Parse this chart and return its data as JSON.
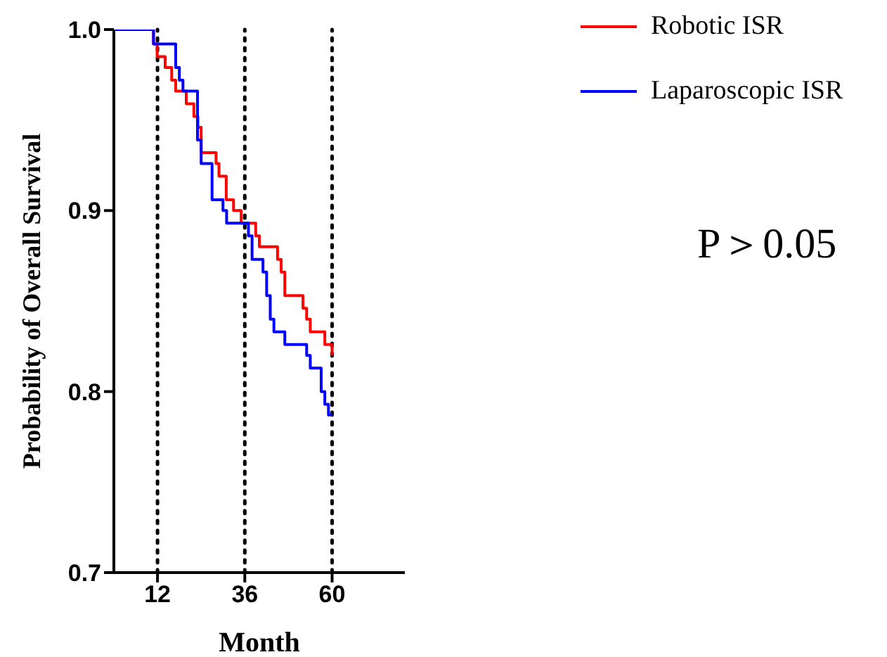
{
  "chart_data": {
    "type": "step",
    "xlabel": "Month",
    "ylabel": "Probability of Overall Survival",
    "xlim": [
      0,
      80
    ],
    "ylim": [
      0.7,
      1
    ],
    "xticks": [
      12,
      36,
      60
    ],
    "yticks": [
      {
        "value": 0.7,
        "label": "0.7"
      },
      {
        "value": 0.8,
        "label": "0.8"
      },
      {
        "value": 0.9,
        "label": "0.9"
      },
      {
        "value": 1,
        "label": "1.0"
      }
    ],
    "legend": "top right",
    "marker": "none",
    "line_style": "solid",
    "series": [
      {
        "name": "Robotic ISR",
        "color": "#ff0000",
        "x": [
          0,
          10.9,
          11.9,
          14.1,
          15.9,
          17,
          19.9,
          22,
          23.1,
          24,
          28.1,
          28.9,
          30.9,
          32.9,
          35,
          39,
          40,
          45,
          46,
          47,
          52,
          53,
          54,
          58,
          60
        ],
        "values": [
          1,
          0.992,
          0.985,
          0.979,
          0.972,
          0.966,
          0.959,
          0.952,
          0.946,
          0.932,
          0.926,
          0.919,
          0.906,
          0.9,
          0.893,
          0.886,
          0.88,
          0.873,
          0.866,
          0.853,
          0.846,
          0.84,
          0.833,
          0.826,
          0.82
        ]
      },
      {
        "name": "Laparoscopic ISR",
        "color": "#0000ff",
        "x": [
          0,
          10.9,
          17,
          18,
          19,
          23,
          24,
          27,
          30,
          31,
          37,
          38,
          41,
          42,
          43,
          44,
          47,
          53,
          54,
          57,
          58,
          59,
          60
        ],
        "values": [
          1,
          0.992,
          0.979,
          0.972,
          0.966,
          0.939,
          0.926,
          0.906,
          0.9,
          0.893,
          0.886,
          0.873,
          0.866,
          0.853,
          0.84,
          0.833,
          0.826,
          0.82,
          0.813,
          0.8,
          0.793,
          0.787,
          0.787
        ]
      }
    ],
    "ref_lines": [
      {
        "axis": "x",
        "value": 12,
        "color": "#000000",
        "line_style": "dotted"
      },
      {
        "axis": "x",
        "value": 36,
        "color": "#000000",
        "line_style": "dotted"
      },
      {
        "axis": "x",
        "value": 60,
        "color": "#000000",
        "line_style": "dotted"
      }
    ],
    "annotations": [
      "P＞0.05"
    ]
  }
}
